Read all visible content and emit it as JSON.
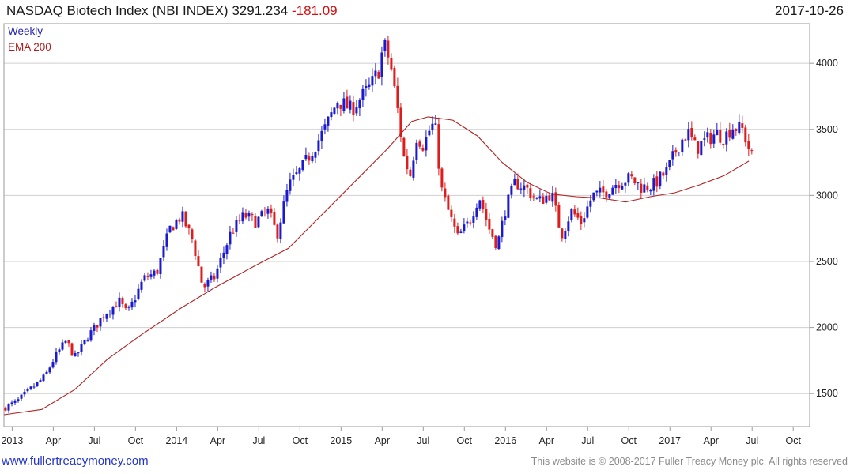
{
  "header": {
    "title": "NASDAQ Biotech Index (NBI INDEX)",
    "last": "3291.234",
    "change": "-181.09",
    "date": "2017-10-26"
  },
  "legend": {
    "frequency": "Weekly",
    "ema": "EMA 200"
  },
  "footer": {
    "site": "www.fullertreacymoney.com",
    "copyright": "This website is © 2008-2017 Fuller Treacy Money plc. All rights reserved"
  },
  "colors": {
    "up": "#1a1acc",
    "down": "#dd1c1c",
    "ema": "#b22222",
    "grid": "#cfcfcf",
    "frame": "#9a9a9a"
  },
  "chart_data": {
    "type": "candlestick",
    "title": "NASDAQ Biotech Index (NBI INDEX)",
    "timeframe": "Weekly",
    "ylim": [
      1250,
      4300
    ],
    "y_ticks": [
      1500,
      2000,
      2500,
      3000,
      3500,
      4000
    ],
    "x_ticks": [
      {
        "label": "2013",
        "t": 0.52
      },
      {
        "label": "Apr",
        "t": 0.77
      },
      {
        "label": "Jul",
        "t": 1.02
      },
      {
        "label": "Oct",
        "t": 1.27
      },
      {
        "label": "2014",
        "t": 1.52
      },
      {
        "label": "Apr",
        "t": 1.77
      },
      {
        "label": "Jul",
        "t": 2.02
      },
      {
        "label": "Oct",
        "t": 2.27
      },
      {
        "label": "2015",
        "t": 2.52
      },
      {
        "label": "Apr",
        "t": 2.77
      },
      {
        "label": "Jul",
        "t": 3.02
      },
      {
        "label": "Oct",
        "t": 3.27
      },
      {
        "label": "2016",
        "t": 3.52
      },
      {
        "label": "Apr",
        "t": 3.77
      },
      {
        "label": "Jul",
        "t": 4.02
      },
      {
        "label": "Oct",
        "t": 4.27
      },
      {
        "label": "2017",
        "t": 4.52
      },
      {
        "label": "Apr",
        "t": 4.77
      },
      {
        "label": "Jul",
        "t": 5.02
      },
      {
        "label": "Oct",
        "t": 5.27
      }
    ],
    "xlim": [
      0.47,
      5.37
    ],
    "price_path": [
      [
        0.47,
        1390
      ],
      [
        0.55,
        1440
      ],
      [
        0.62,
        1520
      ],
      [
        0.72,
        1630
      ],
      [
        0.78,
        1780
      ],
      [
        0.85,
        1900
      ],
      [
        0.9,
        1770
      ],
      [
        0.98,
        1930
      ],
      [
        1.08,
        2100
      ],
      [
        1.17,
        2200
      ],
      [
        1.22,
        2100
      ],
      [
        1.32,
        2370
      ],
      [
        1.4,
        2420
      ],
      [
        1.48,
        2750
      ],
      [
        1.55,
        2850
      ],
      [
        1.62,
        2650
      ],
      [
        1.68,
        2300
      ],
      [
        1.75,
        2380
      ],
      [
        1.85,
        2720
      ],
      [
        1.93,
        2850
      ],
      [
        2.0,
        2800
      ],
      [
        2.08,
        2880
      ],
      [
        2.13,
        2700
      ],
      [
        2.2,
        3070
      ],
      [
        2.28,
        3200
      ],
      [
        2.35,
        3350
      ],
      [
        2.42,
        3500
      ],
      [
        2.5,
        3720
      ],
      [
        2.58,
        3650
      ],
      [
        2.63,
        3720
      ],
      [
        2.7,
        3830
      ],
      [
        2.75,
        3950
      ],
      [
        2.78,
        4150
      ],
      [
        2.82,
        4000
      ],
      [
        2.87,
        3600
      ],
      [
        2.9,
        3300
      ],
      [
        2.94,
        3150
      ],
      [
        2.98,
        3450
      ],
      [
        3.02,
        3380
      ],
      [
        3.06,
        3500
      ],
      [
        3.09,
        3550
      ],
      [
        3.13,
        3050
      ],
      [
        3.18,
        2850
      ],
      [
        3.23,
        2680
      ],
      [
        3.3,
        2800
      ],
      [
        3.36,
        3000
      ],
      [
        3.42,
        2750
      ],
      [
        3.47,
        2620
      ],
      [
        3.52,
        2900
      ],
      [
        3.58,
        3100
      ],
      [
        3.65,
        3050
      ],
      [
        3.72,
        2950
      ],
      [
        3.8,
        3020
      ],
      [
        3.86,
        2700
      ],
      [
        3.92,
        2880
      ],
      [
        3.98,
        2800
      ],
      [
        4.05,
        3000
      ],
      [
        4.12,
        3020
      ],
      [
        4.2,
        3100
      ],
      [
        4.28,
        3130
      ],
      [
        4.35,
        3060
      ],
      [
        4.42,
        3080
      ],
      [
        4.5,
        3180
      ],
      [
        4.58,
        3400
      ],
      [
        4.63,
        3480
      ],
      [
        4.68,
        3350
      ],
      [
        4.72,
        3400
      ],
      [
        4.8,
        3470
      ],
      [
        4.85,
        3440
      ],
      [
        4.9,
        3520
      ],
      [
        4.96,
        3500
      ],
      [
        5.02,
        3290
      ]
    ],
    "series": [
      {
        "name": "Weekly",
        "kind": "candles"
      },
      {
        "name": "EMA 200",
        "kind": "line",
        "values": [
          [
            0.47,
            1340
          ],
          [
            0.7,
            1380
          ],
          [
            0.9,
            1530
          ],
          [
            1.1,
            1760
          ],
          [
            1.3,
            1940
          ],
          [
            1.55,
            2150
          ],
          [
            1.75,
            2300
          ],
          [
            2.0,
            2470
          ],
          [
            2.2,
            2600
          ],
          [
            2.4,
            2850
          ],
          [
            2.6,
            3100
          ],
          [
            2.8,
            3350
          ],
          [
            2.95,
            3560
          ],
          [
            3.05,
            3595
          ],
          [
            3.2,
            3570
          ],
          [
            3.35,
            3450
          ],
          [
            3.5,
            3250
          ],
          [
            3.65,
            3100
          ],
          [
            3.8,
            3010
          ],
          [
            3.95,
            2990
          ],
          [
            4.1,
            2980
          ],
          [
            4.25,
            2950
          ],
          [
            4.4,
            2990
          ],
          [
            4.55,
            3020
          ],
          [
            4.7,
            3080
          ],
          [
            4.85,
            3150
          ],
          [
            5.0,
            3260
          ]
        ]
      }
    ]
  }
}
